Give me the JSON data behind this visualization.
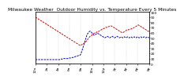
{
  "title": "Milwaukee Weather  Outdoor Humidity vs. Temperature Every 5 Minutes",
  "background_color": "#ffffff",
  "grid_color": "#aaaaaa",
  "red_line_color": "#dd0000",
  "blue_line_color": "#0000cc",
  "ylim": [
    0,
    100
  ],
  "title_fontsize": 4.2,
  "tick_fontsize": 3.2,
  "line_width": 0.7,
  "red_y": [
    90,
    89,
    88,
    87,
    86,
    85,
    84,
    83,
    82,
    81,
    80,
    79,
    78,
    77,
    76,
    75,
    74,
    73,
    72,
    71,
    70,
    69,
    68,
    67,
    66,
    65,
    64,
    63,
    62,
    61,
    60,
    59,
    58,
    57,
    56,
    55,
    54,
    53,
    52,
    51,
    50,
    49,
    48,
    47,
    46,
    45,
    44,
    43,
    42,
    41,
    40,
    39,
    38,
    37,
    36,
    35,
    36,
    37,
    38,
    39,
    40,
    41,
    43,
    45,
    47,
    49,
    51,
    53,
    54,
    55,
    57,
    58,
    59,
    60,
    60,
    61,
    62,
    62,
    63,
    64,
    65,
    66,
    67,
    68,
    68,
    69,
    70,
    70,
    71,
    71,
    72,
    72,
    73,
    73,
    72,
    71,
    70,
    69,
    68,
    67,
    66,
    65,
    64,
    63,
    62,
    61,
    60,
    60,
    61,
    62,
    63,
    64,
    65,
    65,
    66,
    66,
    67,
    67,
    68,
    68,
    69,
    70,
    71,
    72,
    73,
    74,
    75,
    74,
    73,
    72,
    71,
    70,
    69,
    68,
    67,
    66,
    65,
    64,
    63,
    62
  ],
  "blue_y": [
    8,
    8,
    8,
    8,
    8,
    8,
    8,
    8,
    8,
    8,
    8,
    8,
    8,
    8,
    8,
    8,
    8,
    8,
    8,
    8,
    8,
    8,
    8,
    8,
    8,
    8,
    8,
    8,
    8,
    8,
    8,
    9,
    9,
    9,
    10,
    10,
    10,
    10,
    10,
    10,
    10,
    11,
    11,
    11,
    12,
    12,
    12,
    13,
    13,
    14,
    14,
    15,
    15,
    16,
    16,
    17,
    20,
    25,
    30,
    35,
    40,
    45,
    50,
    55,
    58,
    60,
    62,
    63,
    62,
    60,
    58,
    56,
    55,
    56,
    57,
    58,
    59,
    58,
    57,
    56,
    55,
    54,
    53,
    52,
    51,
    50,
    51,
    52,
    53,
    52,
    51,
    50,
    51,
    52,
    53,
    52,
    51,
    50,
    51,
    52,
    53,
    52,
    51,
    50,
    51,
    52,
    51,
    50,
    51,
    52,
    51,
    50,
    51,
    52,
    51,
    50,
    51,
    52,
    51,
    50,
    51,
    52,
    51,
    50,
    51,
    52,
    51,
    50,
    51,
    52,
    51,
    50,
    51,
    52,
    51,
    50,
    51,
    52,
    51,
    50
  ],
  "yticks_right": [
    0,
    10,
    20,
    30,
    40,
    50,
    60,
    70,
    80,
    90,
    100
  ],
  "ytick_labels_right": [
    "0",
    "10",
    "20",
    "30",
    "40",
    "50",
    "60",
    "70",
    "80",
    "90",
    "100"
  ],
  "xtick_labels": [
    "12a",
    "2a",
    "4a",
    "6a",
    "8a",
    "10a",
    "12p",
    "2p",
    "4p",
    "6p",
    "8p"
  ]
}
